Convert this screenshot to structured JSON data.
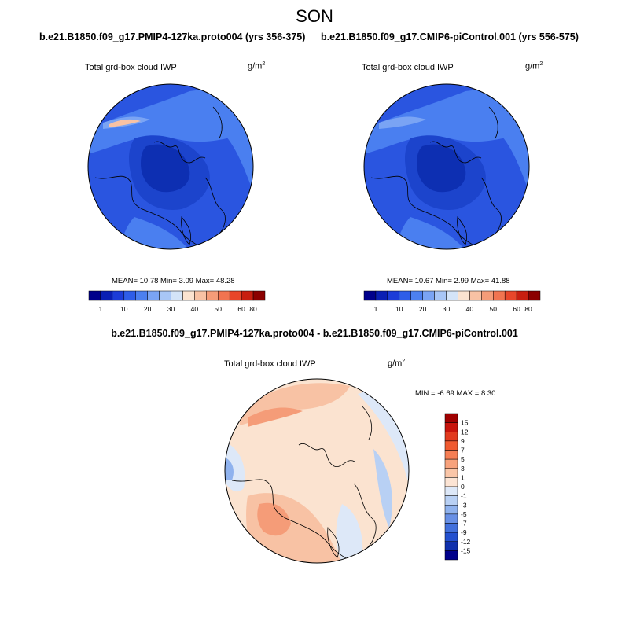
{
  "header": {
    "season": "SON",
    "left_title": "b.e21.B1850.f09_g17.PMIP4-127ka.proto004 (yrs 356-375)",
    "right_title": "b.e21.B1850.f09_g17.CMIP6-piControl.001 (yrs 556-575)",
    "diff_title": "b.e21.B1850.f09_g17.PMIP4-127ka.proto004 - b.e21.B1850.f09_g17.CMIP6-piControl.001"
  },
  "variable": {
    "name": "Total grd-box cloud IWP",
    "unit_base": "g/m",
    "unit_exp": "2"
  },
  "panels": {
    "left": {
      "stats": "MEAN=  10.78  Min=   3.09  Max=  48.28"
    },
    "right": {
      "stats": "MEAN=  10.67  Min=   2.99  Max=  41.88"
    },
    "diff": {
      "stats": "MIN =  -6.69 MAX =   8.30"
    }
  },
  "colorbar_abs": {
    "labels": [
      "1",
      "10",
      "20",
      "30",
      "40",
      "50",
      "60",
      "80"
    ],
    "colors": [
      "#00008b",
      "#0a1fb4",
      "#1c3cd8",
      "#2e5de8",
      "#4c80f0",
      "#7aa4f4",
      "#a8c6f6",
      "#d4e4f8",
      "#fbe3d0",
      "#f8c2a4",
      "#f59c78",
      "#f17450",
      "#e8462a",
      "#c81e10",
      "#8b0000"
    ]
  },
  "colorbar_diff": {
    "labels": [
      "15",
      "12",
      "9",
      "7",
      "5",
      "3",
      "1",
      "0",
      "-1",
      "-3",
      "-5",
      "-7",
      "-9",
      "-12",
      "-15"
    ],
    "colors": [
      "#a00000",
      "#c8140c",
      "#e23a1e",
      "#f05a30",
      "#f67e54",
      "#f8a27c",
      "#fac6a8",
      "#fce4d4",
      "#dde8f8",
      "#b8d0f4",
      "#8fb2ee",
      "#6890e6",
      "#4270dc",
      "#2350cf",
      "#0f30ad",
      "#00008b"
    ]
  },
  "map_colors": {
    "abs_base": "#2a55e0",
    "abs_dark": "#0d2fb2",
    "abs_mid": "#1c44cc",
    "abs_light": "#4a7ff0",
    "abs_lighter": "#7aa4f4",
    "abs_warm": "#f8c2a4",
    "diff_base": "#fbe3d0",
    "diff_warm": "#f8c2a4",
    "diff_warmer": "#f59c78",
    "diff_cool": "#dde8f8",
    "diff_cooler": "#b8d0f4",
    "diff_coolest": "#8fb2ee"
  }
}
